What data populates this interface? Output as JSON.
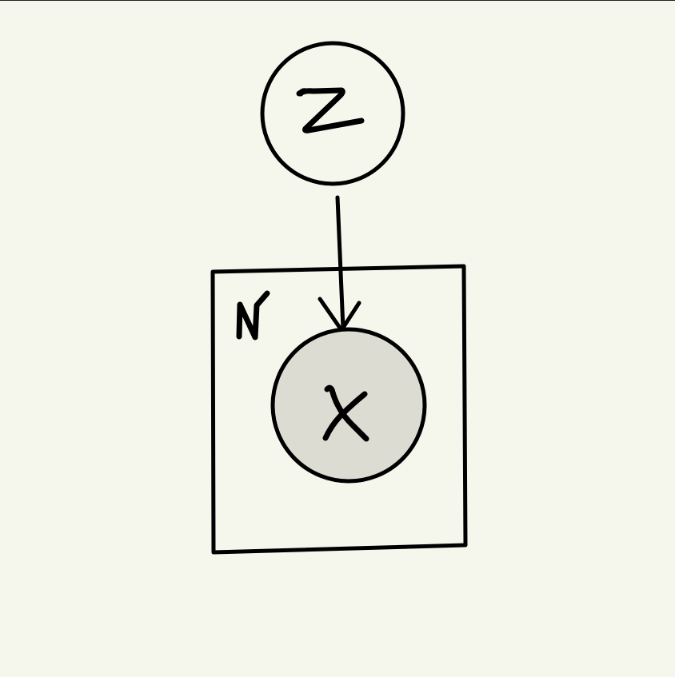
{
  "diagram": {
    "type": "graphical-model",
    "background_color": "#f6f7ec",
    "observed_fill": "#dddcd3",
    "stroke_color": "#000000",
    "nodes": [
      {
        "id": "z",
        "label": "Z",
        "observed": false
      },
      {
        "id": "x",
        "label": "X",
        "observed": true
      }
    ],
    "edges": [
      {
        "from": "z",
        "to": "x"
      }
    ],
    "plate": {
      "label": "N",
      "contains": [
        "x"
      ]
    }
  }
}
